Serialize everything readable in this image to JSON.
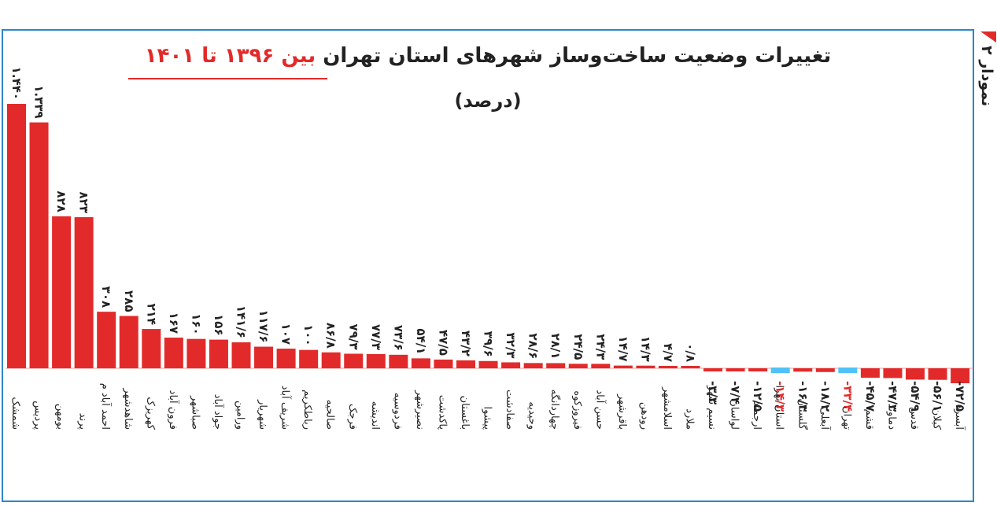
{
  "side_label": "نمودار ۲",
  "colors": {
    "positive": "#e32a2a",
    "highlight": "#4fc3f7",
    "frame": "#2b88c8",
    "text": "#222222"
  },
  "title": {
    "part1": "تغییرات وضعیت ساخت‌وساز شهرهای استان تهران",
    "part2": "بین ۱۳۹۶ تا ۱۴۰۱",
    "subtitle": "(درصد)"
  },
  "chart_data": {
    "type": "bar",
    "title": "تغییرات وضعیت ساخت‌وساز شهرهای استان تهران بین ۱۳۹۶ تا ۱۴۰۱",
    "subtitle": "(درصد)",
    "xlabel": "",
    "ylabel": "",
    "unit": "درصد",
    "grid": false,
    "categories": [
      "شمشک",
      "پردیس",
      "بومهن",
      "پرند",
      "احمد آباد م",
      "شاهدشهر",
      "کهریزک",
      "فرون آباد",
      "صباشهر",
      "جواد آباد",
      "ورامین",
      "شهریار",
      "شریف آباد",
      "رباطکریم",
      "صالحیه",
      "فرجک",
      "اندیشه",
      "فردوسیه",
      "نصیرشهر",
      "پاکدشت",
      "باغستان",
      "پیشوا",
      "صفادشت",
      "وحیدیه",
      "چهاردانگه",
      "فیروزکوه",
      "حسن آباد",
      "باقرشهر",
      "رودهن",
      "اسلامشهر",
      "ملارد",
      "نسیم شهر",
      "لواسان",
      "ارجمند",
      "استان تهرا",
      "گلستان",
      "آبعلی",
      "تهران",
      "قشم",
      "دماوند",
      "قدس",
      "کیلان",
      "آبسرد"
    ],
    "values": [
      1440,
      1339,
      828,
      823,
      308,
      285,
      214,
      167,
      160,
      156,
      141.6,
      117.6,
      107,
      100,
      86.8,
      79.3,
      77.3,
      73.6,
      54.1,
      47.5,
      43.2,
      39.6,
      32.3,
      28.6,
      28.1,
      24.5,
      24.3,
      14.7,
      14.3,
      4.7,
      0.8,
      -3.3,
      -7.4,
      -12.5,
      -14.3,
      -16.3,
      -18.2,
      -33.4,
      -45.7,
      -47.3,
      -54.9,
      -56.1,
      -72.5
    ],
    "value_labels": [
      "۱.۴۴۰",
      "۱.۳۳۹",
      "۸۲۸",
      "۸۲۳",
      "۳۰۸",
      "۲۸۵",
      "۲۱۴",
      "۱۶۷",
      "۱۶۰",
      "۱۵۶",
      "۱۴۱/۶",
      "۱۱۷/۶",
      "۱۰۷",
      "۱۰۰",
      "۸۶/۸",
      "۷۹/۳",
      "۷۷/۳",
      "۷۳/۶",
      "۵۴/۱",
      "۴۷/۵",
      "۴۳/۲",
      "۳۹/۶",
      "۳۲/۳",
      "۲۸/۶",
      "۲۸/۱",
      "۲۴/۵",
      "۲۴/۳",
      "۱۴/۷",
      "۱۴/۳",
      "۴/۷",
      "۰/۸",
      "-۳/۳",
      "-۷/۴",
      "-۱۲/۵",
      "-۱۴/۳",
      "-۱۶/۳",
      "-۱۸/۲",
      "-۳۳/۴",
      "-۴۵/۷",
      "-۴۷/۳",
      "-۵۴/۹",
      "-۵۶/۱",
      "-۷۲/۵"
    ],
    "highlighted": [
      "استان تهرا",
      "تهران"
    ],
    "ylim": [
      -75,
      1450
    ]
  }
}
